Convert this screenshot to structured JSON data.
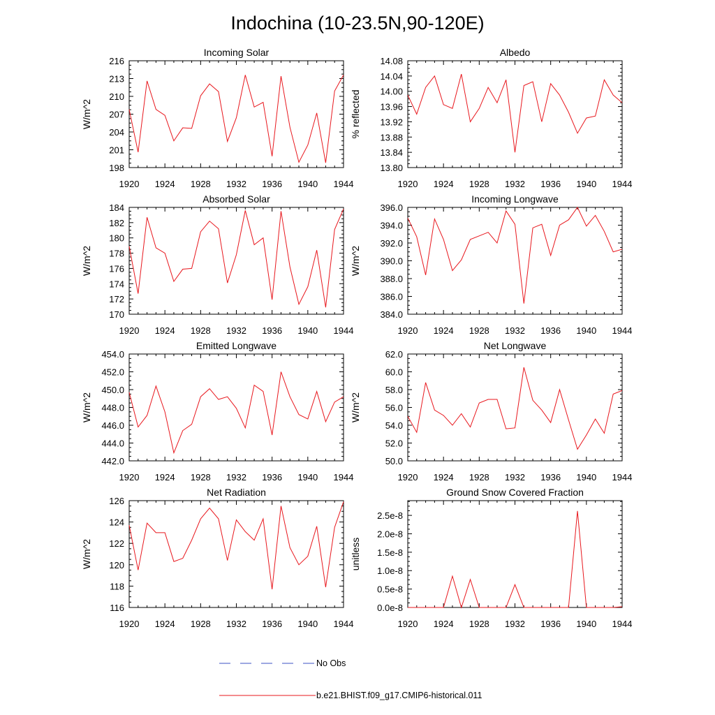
{
  "title": "Indochina (10-23.5N,90-120E)",
  "colors": {
    "model": "#e8171d",
    "obs": "#3b52c4",
    "axis": "#000000"
  },
  "legend": {
    "obs_label": "No Obs",
    "model_label": "b.e21.BHIST.f09_g17.CMIP6-historical.011"
  },
  "chart_data": [
    {
      "type": "line",
      "title": "Incoming Solar",
      "ylabel": "W/m^2",
      "xlim": [
        1920,
        1944
      ],
      "ylim": [
        198,
        216
      ],
      "xticks": [
        "1920",
        "1924",
        "1928",
        "1932",
        "1936",
        "1940",
        "1944"
      ],
      "yticks": [
        "198",
        "201",
        "204",
        "207",
        "210",
        "213",
        "216"
      ],
      "x": [
        1920,
        1921,
        1922,
        1923,
        1924,
        1925,
        1926,
        1927,
        1928,
        1929,
        1930,
        1931,
        1932,
        1933,
        1934,
        1935,
        1936,
        1937,
        1938,
        1939,
        1940,
        1941,
        1942,
        1943,
        1944
      ],
      "series": [
        {
          "values": [
            207.8,
            200.6,
            212.6,
            207.8,
            206.8,
            202.5,
            204.7,
            204.6,
            210.1,
            212.1,
            210.8,
            202.4,
            206.4,
            213.6,
            208.2,
            209.0,
            199.9,
            213.4,
            204.8,
            198.9,
            201.8,
            207.2,
            198.8,
            210.9,
            213.6
          ]
        }
      ]
    },
    {
      "type": "line",
      "title": "Albedo",
      "ylabel": "% reflected",
      "xlim": [
        1920,
        1944
      ],
      "ylim": [
        13.8,
        14.08
      ],
      "xticks": [
        "1920",
        "1924",
        "1928",
        "1932",
        "1936",
        "1940",
        "1944"
      ],
      "yticks": [
        "13.80",
        "13.84",
        "13.88",
        "13.92",
        "13.96",
        "14.00",
        "14.04",
        "14.08"
      ],
      "x": [
        1920,
        1921,
        1922,
        1923,
        1924,
        1925,
        1926,
        1927,
        1928,
        1929,
        1930,
        1931,
        1932,
        1933,
        1934,
        1935,
        1936,
        1937,
        1938,
        1939,
        1940,
        1941,
        1942,
        1943,
        1944
      ],
      "series": [
        {
          "values": [
            13.99,
            13.94,
            14.01,
            14.04,
            13.965,
            13.955,
            14.045,
            13.92,
            13.955,
            14.01,
            13.97,
            14.03,
            13.84,
            14.015,
            14.025,
            13.92,
            14.02,
            13.99,
            13.945,
            13.89,
            13.93,
            13.935,
            14.03,
            13.99,
            13.97
          ]
        }
      ]
    },
    {
      "type": "line",
      "title": "Absorbed Solar",
      "ylabel": "W/m^2",
      "xlim": [
        1920,
        1944
      ],
      "ylim": [
        170,
        184
      ],
      "xticks": [
        "1920",
        "1924",
        "1928",
        "1932",
        "1936",
        "1940",
        "1944"
      ],
      "yticks": [
        "170",
        "172",
        "174",
        "176",
        "178",
        "180",
        "182",
        "184"
      ],
      "x": [
        1920,
        1921,
        1922,
        1923,
        1924,
        1925,
        1926,
        1927,
        1928,
        1929,
        1930,
        1931,
        1932,
        1933,
        1934,
        1935,
        1936,
        1937,
        1938,
        1939,
        1940,
        1941,
        1942,
        1943,
        1944
      ],
      "series": [
        {
          "values": [
            178.9,
            172.7,
            182.7,
            178.7,
            178.0,
            174.3,
            175.9,
            176.0,
            180.8,
            182.2,
            181.2,
            174.1,
            177.8,
            183.6,
            179.1,
            180.0,
            171.9,
            183.5,
            176.2,
            171.3,
            173.6,
            178.4,
            170.9,
            181.1,
            183.8
          ]
        }
      ]
    },
    {
      "type": "line",
      "title": "Incoming Longwave",
      "ylabel": "W/m^2",
      "xlim": [
        1920,
        1944
      ],
      "ylim": [
        384.0,
        396.0
      ],
      "xticks": [
        "1920",
        "1924",
        "1928",
        "1932",
        "1936",
        "1940",
        "1944"
      ],
      "yticks": [
        "384.0",
        "386.0",
        "388.0",
        "390.0",
        "392.0",
        "394.0",
        "396.0"
      ],
      "x": [
        1920,
        1921,
        1922,
        1923,
        1924,
        1925,
        1926,
        1927,
        1928,
        1929,
        1930,
        1931,
        1932,
        1933,
        1934,
        1935,
        1936,
        1937,
        1938,
        1939,
        1940,
        1941,
        1942,
        1943,
        1944
      ],
      "series": [
        {
          "values": [
            394.8,
            392.7,
            388.4,
            394.7,
            392.4,
            388.9,
            390.1,
            392.4,
            392.8,
            393.2,
            392.0,
            395.6,
            394.1,
            385.2,
            393.7,
            394.1,
            390.6,
            394.0,
            394.6,
            396.0,
            393.9,
            395.1,
            393.3,
            391.0,
            391.3
          ]
        }
      ]
    },
    {
      "type": "line",
      "title": "Emitted Longwave",
      "ylabel": "W/m^2",
      "xlim": [
        1920,
        1944
      ],
      "ylim": [
        442.0,
        454.0
      ],
      "xticks": [
        "1920",
        "1924",
        "1928",
        "1932",
        "1936",
        "1940",
        "1944"
      ],
      "yticks": [
        "442.0",
        "444.0",
        "446.0",
        "448.0",
        "450.0",
        "452.0",
        "454.0"
      ],
      "x": [
        1920,
        1921,
        1922,
        1923,
        1924,
        1925,
        1926,
        1927,
        1928,
        1929,
        1930,
        1931,
        1932,
        1933,
        1934,
        1935,
        1936,
        1937,
        1938,
        1939,
        1940,
        1941,
        1942,
        1943,
        1944
      ],
      "series": [
        {
          "values": [
            449.7,
            445.8,
            447.1,
            450.4,
            447.5,
            442.9,
            445.4,
            446.1,
            449.2,
            450.1,
            448.9,
            449.2,
            447.9,
            445.7,
            450.5,
            449.8,
            444.9,
            452.0,
            449.2,
            447.2,
            446.7,
            449.8,
            446.4,
            448.6,
            449.2
          ]
        }
      ]
    },
    {
      "type": "line",
      "title": "Net Longwave",
      "ylabel": "W/m^2",
      "xlim": [
        1920,
        1944
      ],
      "ylim": [
        50.0,
        62.0
      ],
      "xticks": [
        "1920",
        "1924",
        "1928",
        "1932",
        "1936",
        "1940",
        "1944"
      ],
      "yticks": [
        "50.0",
        "52.0",
        "54.0",
        "56.0",
        "58.0",
        "60.0",
        "62.0"
      ],
      "x": [
        1920,
        1921,
        1922,
        1923,
        1924,
        1925,
        1926,
        1927,
        1928,
        1929,
        1930,
        1931,
        1932,
        1933,
        1934,
        1935,
        1936,
        1937,
        1938,
        1939,
        1940,
        1941,
        1942,
        1943,
        1944
      ],
      "series": [
        {
          "values": [
            55.0,
            53.2,
            58.8,
            55.7,
            55.1,
            54.0,
            55.3,
            53.8,
            56.5,
            56.9,
            56.9,
            53.6,
            53.7,
            60.5,
            56.8,
            55.7,
            54.3,
            58.0,
            54.6,
            51.3,
            52.9,
            54.7,
            53.1,
            57.5,
            57.9
          ]
        }
      ]
    },
    {
      "type": "line",
      "title": "Net Radiation",
      "ylabel": "W/m^2",
      "xlim": [
        1920,
        1944
      ],
      "ylim": [
        116,
        126
      ],
      "xticks": [
        "1920",
        "1924",
        "1928",
        "1932",
        "1936",
        "1940",
        "1944"
      ],
      "yticks": [
        "116",
        "118",
        "120",
        "122",
        "124",
        "126"
      ],
      "x": [
        1920,
        1921,
        1922,
        1923,
        1924,
        1925,
        1926,
        1927,
        1928,
        1929,
        1930,
        1931,
        1932,
        1933,
        1934,
        1935,
        1936,
        1937,
        1938,
        1939,
        1940,
        1941,
        1942,
        1943,
        1944
      ],
      "series": [
        {
          "values": [
            123.7,
            119.5,
            123.9,
            123.0,
            123.0,
            120.3,
            120.6,
            122.3,
            124.3,
            125.3,
            124.3,
            120.4,
            124.2,
            123.1,
            122.3,
            124.3,
            117.7,
            125.5,
            121.6,
            120.0,
            120.8,
            123.6,
            117.9,
            123.5,
            125.9
          ]
        }
      ]
    },
    {
      "type": "line",
      "title": "Ground Snow Covered Fraction",
      "ylabel": "unitless",
      "xlim": [
        1920,
        1944
      ],
      "ylim": [
        0,
        2.9e-08
      ],
      "xticks": [
        "1920",
        "1924",
        "1928",
        "1932",
        "1936",
        "1940",
        "1944"
      ],
      "yticks": [
        "0.0e-8",
        "0.5e-8",
        "1.0e-8",
        "1.5e-8",
        "2.0e-8",
        "2.5e-8"
      ],
      "ytick_values": [
        0,
        5e-09,
        1e-08,
        1.5e-08,
        2e-08,
        2.5e-08
      ],
      "x": [
        1920,
        1921,
        1922,
        1923,
        1924,
        1925,
        1926,
        1927,
        1928,
        1929,
        1930,
        1931,
        1932,
        1933,
        1934,
        1935,
        1936,
        1937,
        1938,
        1939,
        1940,
        1941,
        1942,
        1943,
        1944
      ],
      "series": [
        {
          "values": [
            0,
            0,
            0,
            0,
            0,
            8.5e-09,
            0,
            7.6e-09,
            0,
            0,
            0,
            0,
            6.2e-09,
            0,
            0,
            0,
            0,
            0,
            0,
            2.62e-08,
            0,
            0,
            0,
            0,
            2e-10
          ]
        }
      ]
    }
  ]
}
